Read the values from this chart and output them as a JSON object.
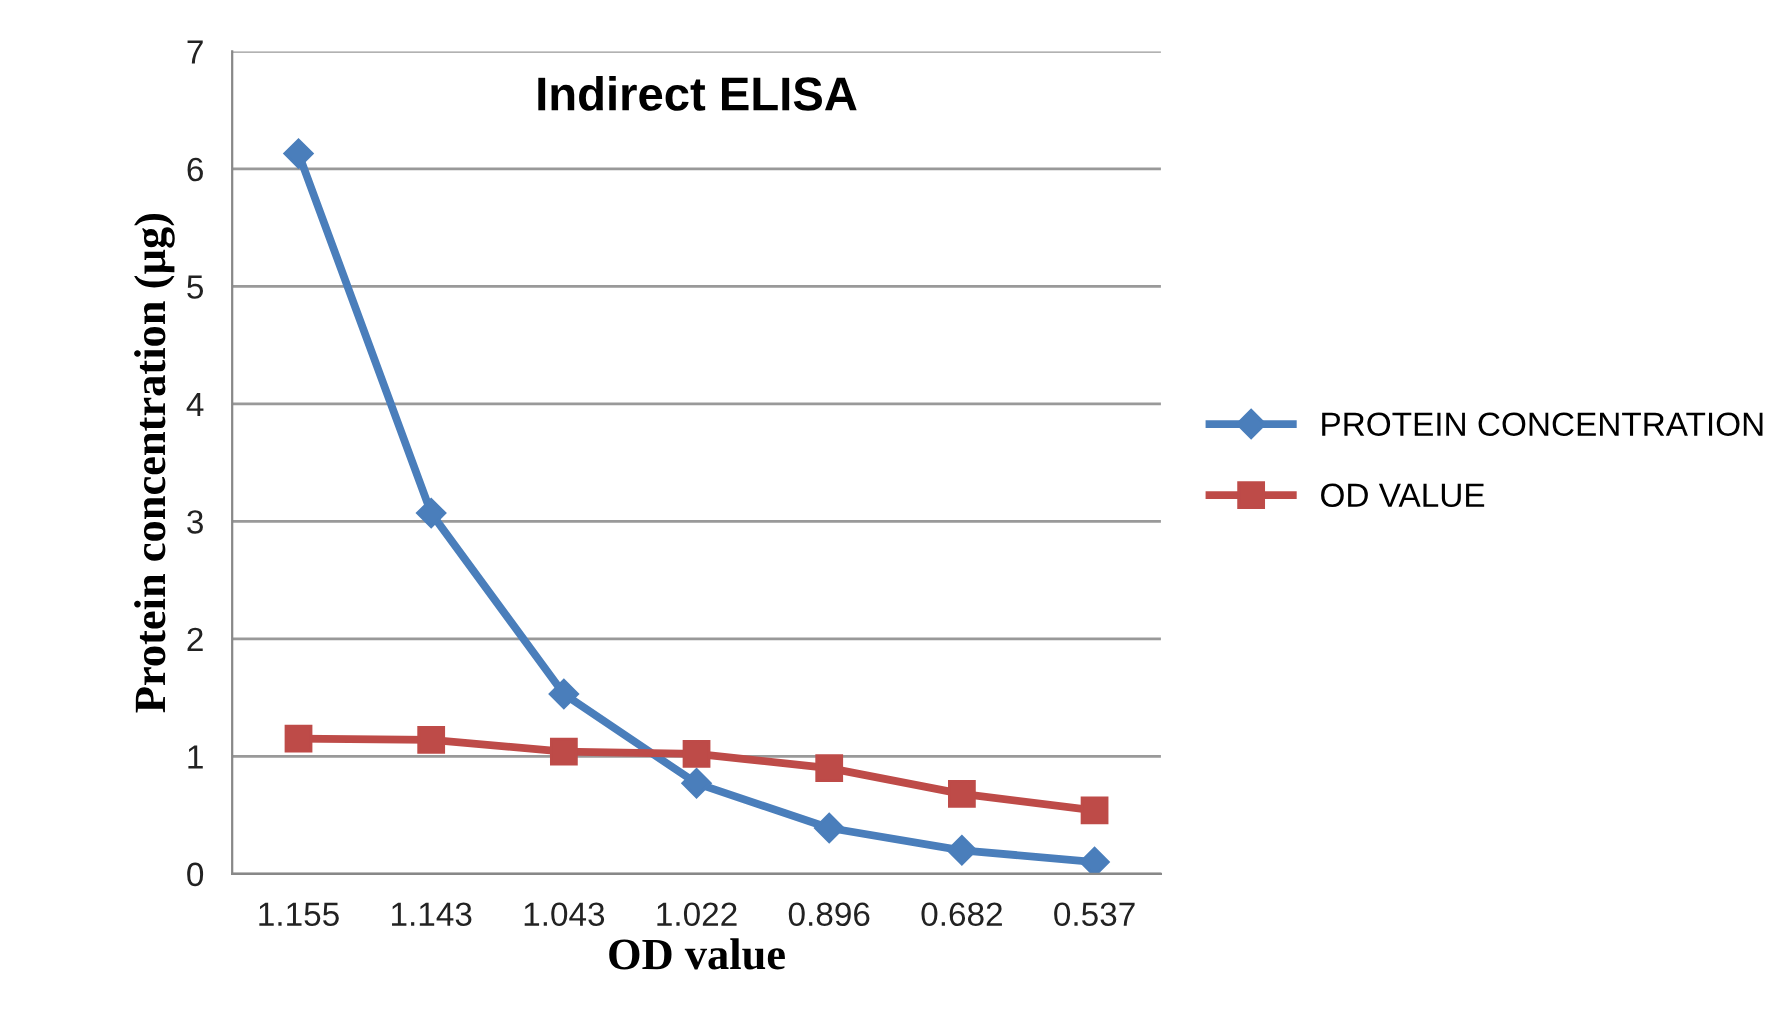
{
  "chart_data": {
    "type": "line",
    "title": "Indirect ELISA",
    "xlabel": "OD value",
    "ylabel": "Protein concentration (µg)",
    "categories": [
      "1.155",
      "1.143",
      "1.043",
      "1.022",
      "0.896",
      "0.682",
      "0.537"
    ],
    "series": [
      {
        "name": "PROTEIN CONCENTRATION",
        "color": "#4a7ebb",
        "marker": "diamond",
        "values": [
          6.13,
          3.07,
          1.53,
          0.77,
          0.39,
          0.2,
          0.1
        ]
      },
      {
        "name": "OD VALUE",
        "color": "#be4b48",
        "marker": "square",
        "values": [
          1.15,
          1.14,
          1.04,
          1.02,
          0.9,
          0.68,
          0.54
        ]
      }
    ],
    "ylim": [
      0,
      7
    ],
    "yticks": [
      0,
      1,
      2,
      3,
      4,
      5,
      6,
      7
    ],
    "grid": "y",
    "legend": "right",
    "line_style": "solid"
  }
}
